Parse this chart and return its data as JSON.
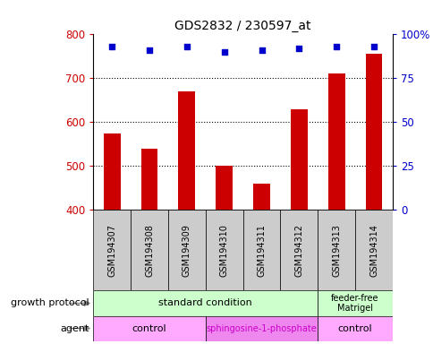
{
  "title": "GDS2832 / 230597_at",
  "samples": [
    "GSM194307",
    "GSM194308",
    "GSM194309",
    "GSM194310",
    "GSM194311",
    "GSM194312",
    "GSM194313",
    "GSM194314"
  ],
  "counts": [
    575,
    540,
    670,
    500,
    460,
    630,
    710,
    755
  ],
  "percentile_ranks": [
    93,
    91,
    93,
    90,
    91,
    92,
    93,
    93
  ],
  "ylim_left": [
    400,
    800
  ],
  "ylim_right": [
    0,
    100
  ],
  "yticks_left": [
    400,
    500,
    600,
    700,
    800
  ],
  "yticks_right": [
    0,
    25,
    50,
    75,
    100
  ],
  "ytick_right_labels": [
    "0",
    "25",
    "50",
    "75",
    "100%"
  ],
  "bar_color": "#cc0000",
  "dot_color": "#0000cc",
  "bar_bottom": 400,
  "hlines": [
    500,
    600,
    700
  ],
  "background_color": "#ffffff",
  "tick_label_color_left": "#cc0000",
  "tick_label_color_right": "#0000cc",
  "sample_box_color": "#cccccc",
  "gp_color": "#ccffcc",
  "agent_control_color": "#ffaaff",
  "agent_sphingo_color": "#ee88ee",
  "arrow_color": "#888888"
}
